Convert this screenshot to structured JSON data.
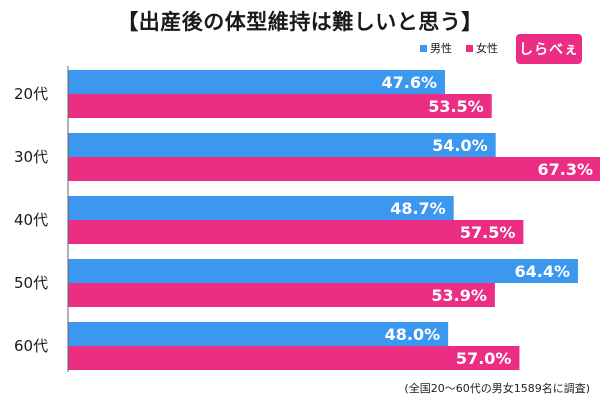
{
  "title": "【出産後の体型維持は難しいと思う】",
  "legend": {
    "male_label": "男性",
    "female_label": "女性"
  },
  "logo_text": "しらべぇ",
  "footnote": "(全国20～60代の男女1589名に調査)",
  "colors": {
    "male": "#3c97ee",
    "female": "#ec2d84",
    "axis": "#666666",
    "value_text": "#ffffff"
  },
  "chart_data": {
    "type": "bar",
    "orientation": "horizontal",
    "categories": [
      "20代",
      "30代",
      "40代",
      "50代",
      "60代"
    ],
    "series": [
      {
        "name": "男性",
        "values": [
          47.6,
          54.0,
          48.7,
          64.4,
          48.0
        ]
      },
      {
        "name": "女性",
        "values": [
          53.5,
          67.3,
          57.5,
          53.9,
          57.0
        ]
      }
    ],
    "value_labels": {
      "男性": [
        "47.6%",
        "54.0%",
        "48.7%",
        "64.4%",
        "48.0%"
      ],
      "女性": [
        "53.5%",
        "67.3%",
        "57.5%",
        "53.9%",
        "57.0%"
      ]
    },
    "title": "【出産後の体型維持は難しいと思う】",
    "xlabel": "",
    "ylabel": "",
    "xlim": [
      0,
      100
    ],
    "grid": false,
    "legend_position": "top-right"
  }
}
